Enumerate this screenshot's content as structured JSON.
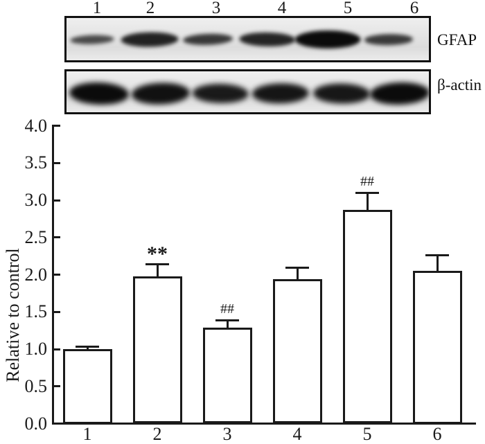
{
  "figure": {
    "background": "#ffffff",
    "line_color": "#1a1a1a",
    "bar_fill": "#ffffff"
  },
  "blot": {
    "lane_labels": [
      "1",
      "2",
      "3",
      "4",
      "5",
      "6"
    ],
    "panels": [
      {
        "label": "GFAP",
        "band_intensities": [
          0.42,
          0.78,
          0.58,
          0.75,
          1.0,
          0.55
        ]
      },
      {
        "label": "β-actin",
        "band_intensities": [
          1.0,
          0.95,
          0.85,
          0.9,
          0.88,
          1.0
        ]
      }
    ]
  },
  "chart_data": {
    "type": "bar",
    "title": "",
    "xlabel": "",
    "ylabel": "Relative to control",
    "categories": [
      "1",
      "2",
      "3",
      "4",
      "5",
      "6"
    ],
    "values": [
      1.0,
      1.98,
      1.29,
      1.94,
      2.87,
      2.05
    ],
    "errors_upper": [
      0.05,
      0.17,
      0.11,
      0.17,
      0.24,
      0.22
    ],
    "annotations": [
      "",
      "**",
      "##",
      "",
      "##",
      ""
    ],
    "ylim": [
      0.0,
      4.0
    ],
    "ytick_labels": [
      "0.0",
      "0.5",
      "1.0",
      "1.5",
      "2.0",
      "2.5",
      "3.0",
      "3.5",
      "4.0"
    ],
    "grid": false,
    "legend": null,
    "bar_fill": "#ffffff",
    "bar_border": "#1a1a1a"
  }
}
